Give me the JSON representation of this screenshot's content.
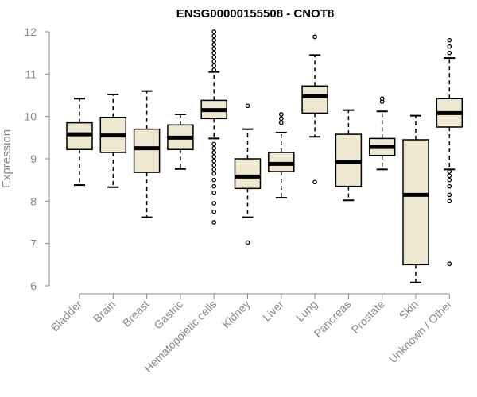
{
  "chart_data": {
    "type": "boxplot",
    "title": "ENSG00000155508 - CNOT8",
    "xlabel": "",
    "ylabel": "Expression",
    "ylim": [
      6,
      12
    ],
    "yticks": [
      "6",
      "7",
      "8",
      "9",
      "10",
      "11",
      "12"
    ],
    "box_fill": "#efe8d0",
    "box_stroke": "#000000",
    "axis_color": "#888888",
    "categories": [
      "Bladder",
      "Brain",
      "Breast",
      "Gastric",
      "Hematopoietic cells",
      "Kidney",
      "Liver",
      "Lung",
      "Pancreas",
      "Prostate",
      "Skin",
      "Unknown / Other"
    ],
    "boxes": [
      {
        "name": "Bladder",
        "whisker_low": 8.38,
        "q1": 9.22,
        "median": 9.58,
        "q3": 9.85,
        "whisker_high": 10.42,
        "outliers": []
      },
      {
        "name": "Brain",
        "whisker_low": 8.33,
        "q1": 9.15,
        "median": 9.55,
        "q3": 9.98,
        "whisker_high": 10.52,
        "outliers": []
      },
      {
        "name": "Breast",
        "whisker_low": 7.62,
        "q1": 8.68,
        "median": 9.25,
        "q3": 9.7,
        "whisker_high": 10.6,
        "outliers": []
      },
      {
        "name": "Gastric",
        "whisker_low": 8.76,
        "q1": 9.22,
        "median": 9.5,
        "q3": 9.8,
        "whisker_high": 10.05,
        "outliers": []
      },
      {
        "name": "Hematopoietic cells",
        "whisker_low": 9.48,
        "q1": 9.95,
        "median": 10.15,
        "q3": 10.38,
        "whisker_high": 11.05,
        "outliers": [
          11.1,
          11.2,
          11.3,
          11.4,
          11.5,
          11.6,
          11.7,
          11.8,
          11.9,
          12.0,
          9.35,
          9.25,
          9.15,
          9.05,
          8.95,
          8.85,
          8.75,
          8.65,
          8.5,
          8.35,
          8.2,
          7.95,
          7.75,
          7.5
        ]
      },
      {
        "name": "Kidney",
        "whisker_low": 7.62,
        "q1": 8.3,
        "median": 8.58,
        "q3": 9.0,
        "whisker_high": 9.7,
        "outliers": [
          10.25,
          7.02
        ]
      },
      {
        "name": "Liver",
        "whisker_low": 8.08,
        "q1": 8.7,
        "median": 8.88,
        "q3": 9.15,
        "whisker_high": 9.62,
        "outliers": [
          9.85,
          9.95,
          10.05
        ]
      },
      {
        "name": "Lung",
        "whisker_low": 9.52,
        "q1": 10.08,
        "median": 10.48,
        "q3": 10.72,
        "whisker_high": 11.45,
        "outliers": [
          11.88,
          8.45
        ]
      },
      {
        "name": "Pancreas",
        "whisker_low": 8.02,
        "q1": 8.35,
        "median": 8.92,
        "q3": 9.58,
        "whisker_high": 10.15,
        "outliers": []
      },
      {
        "name": "Prostate",
        "whisker_low": 8.75,
        "q1": 9.08,
        "median": 9.28,
        "q3": 9.48,
        "whisker_high": 10.12,
        "outliers": [
          10.35,
          10.42
        ]
      },
      {
        "name": "Skin",
        "whisker_low": 6.08,
        "q1": 6.5,
        "median": 8.15,
        "q3": 9.45,
        "whisker_high": 10.02,
        "outliers": []
      },
      {
        "name": "Unknown / Other",
        "whisker_low": 8.75,
        "q1": 9.75,
        "median": 10.08,
        "q3": 10.42,
        "whisker_high": 11.38,
        "outliers": [
          11.5,
          11.65,
          11.8,
          8.7,
          8.6,
          8.5,
          8.35,
          8.15,
          8.0,
          6.52
        ]
      }
    ]
  }
}
